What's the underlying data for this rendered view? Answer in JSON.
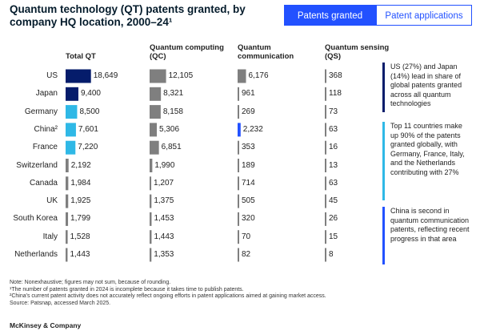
{
  "chart_data": {
    "type": "bar",
    "orientation": "horizontal",
    "title": "Quantum technology (QT) patents granted, by company HQ location, 2000–24¹",
    "tabs": [
      {
        "label": "Patents granted",
        "active": true
      },
      {
        "label": "Patent applications",
        "active": false
      }
    ],
    "categories": [
      "US",
      "Japan",
      "Germany",
      "China²",
      "France",
      "Switzerland",
      "Canada",
      "UK",
      "South Korea",
      "Italy",
      "Netherlands"
    ],
    "series": [
      {
        "name": "Total QT",
        "colors": [
          "#051c6b",
          "#051c6b",
          "#2fb8e6",
          "#2fb8e6",
          "#2fb8e6",
          "#7f7f7f",
          "#7f7f7f",
          "#7f7f7f",
          "#7f7f7f",
          "#7f7f7f",
          "#7f7f7f"
        ],
        "values": [
          18649,
          9400,
          8500,
          7601,
          7220,
          2192,
          1984,
          1925,
          1799,
          1528,
          1443
        ],
        "value_labels": [
          "18,649",
          "9,400",
          "8,500",
          "7,601",
          "7,220",
          "2,192",
          "1,984",
          "1,925",
          "1,799",
          "1,528",
          "1,443"
        ]
      },
      {
        "name": "Quantum computing (QC)",
        "colors": [
          "#7f7f7f",
          "#7f7f7f",
          "#7f7f7f",
          "#7f7f7f",
          "#7f7f7f",
          "#7f7f7f",
          "#7f7f7f",
          "#7f7f7f",
          "#7f7f7f",
          "#7f7f7f",
          "#7f7f7f"
        ],
        "values": [
          12105,
          8321,
          8158,
          5306,
          6851,
          1990,
          1207,
          1375,
          1453,
          1443,
          1353
        ],
        "value_labels": [
          "12,105",
          "8,321",
          "8,158",
          "5,306",
          "6,851",
          "1,990",
          "1,207",
          "1,375",
          "1,453",
          "1,443",
          "1,353"
        ]
      },
      {
        "name": "Quantum communication",
        "colors": [
          "#7f7f7f",
          "#7f7f7f",
          "#7f7f7f",
          "#2251ff",
          "#7f7f7f",
          "#7f7f7f",
          "#7f7f7f",
          "#7f7f7f",
          "#7f7f7f",
          "#7f7f7f",
          "#7f7f7f"
        ],
        "values": [
          6176,
          961,
          269,
          2232,
          353,
          189,
          714,
          505,
          320,
          70,
          82
        ],
        "value_labels": [
          "6,176",
          "961",
          "269",
          "2,232",
          "353",
          "189",
          "714",
          "505",
          "320",
          "70",
          "82"
        ]
      },
      {
        "name": "Quantum sensing (QS)",
        "colors": [
          "#7f7f7f",
          "#7f7f7f",
          "#7f7f7f",
          "#7f7f7f",
          "#7f7f7f",
          "#7f7f7f",
          "#7f7f7f",
          "#7f7f7f",
          "#7f7f7f",
          "#7f7f7f",
          "#7f7f7f"
        ],
        "values": [
          368,
          118,
          73,
          63,
          16,
          13,
          63,
          45,
          26,
          15,
          8
        ]
      }
    ],
    "annotations": [
      {
        "text": "US (27%) and Japan (14%) lead in share of global patents granted across all quantum technologies",
        "color": "#051c6b"
      },
      {
        "text": "Top 11 countries make up 90% of the patents granted globally, with Germany, France, Italy, and the Netherlands contributing with 27%",
        "color": "#2fb8e6"
      },
      {
        "text": "China is second in quantum communication patents, reflecting recent progress in that area",
        "color": "#2251ff"
      }
    ],
    "notes": [
      "Note: Nonexhaustive; figures may not sum, because of rounding.",
      "¹The number of patents granted in 2024 is incomplete because it takes time to publish patents.",
      "²China's current patent activity does not accurately reflect ongoing efforts in patent applications aimed at gaining market access.",
      "Source: Patsnap, accessed March 2025."
    ],
    "brand": "McKinsey & Company"
  }
}
